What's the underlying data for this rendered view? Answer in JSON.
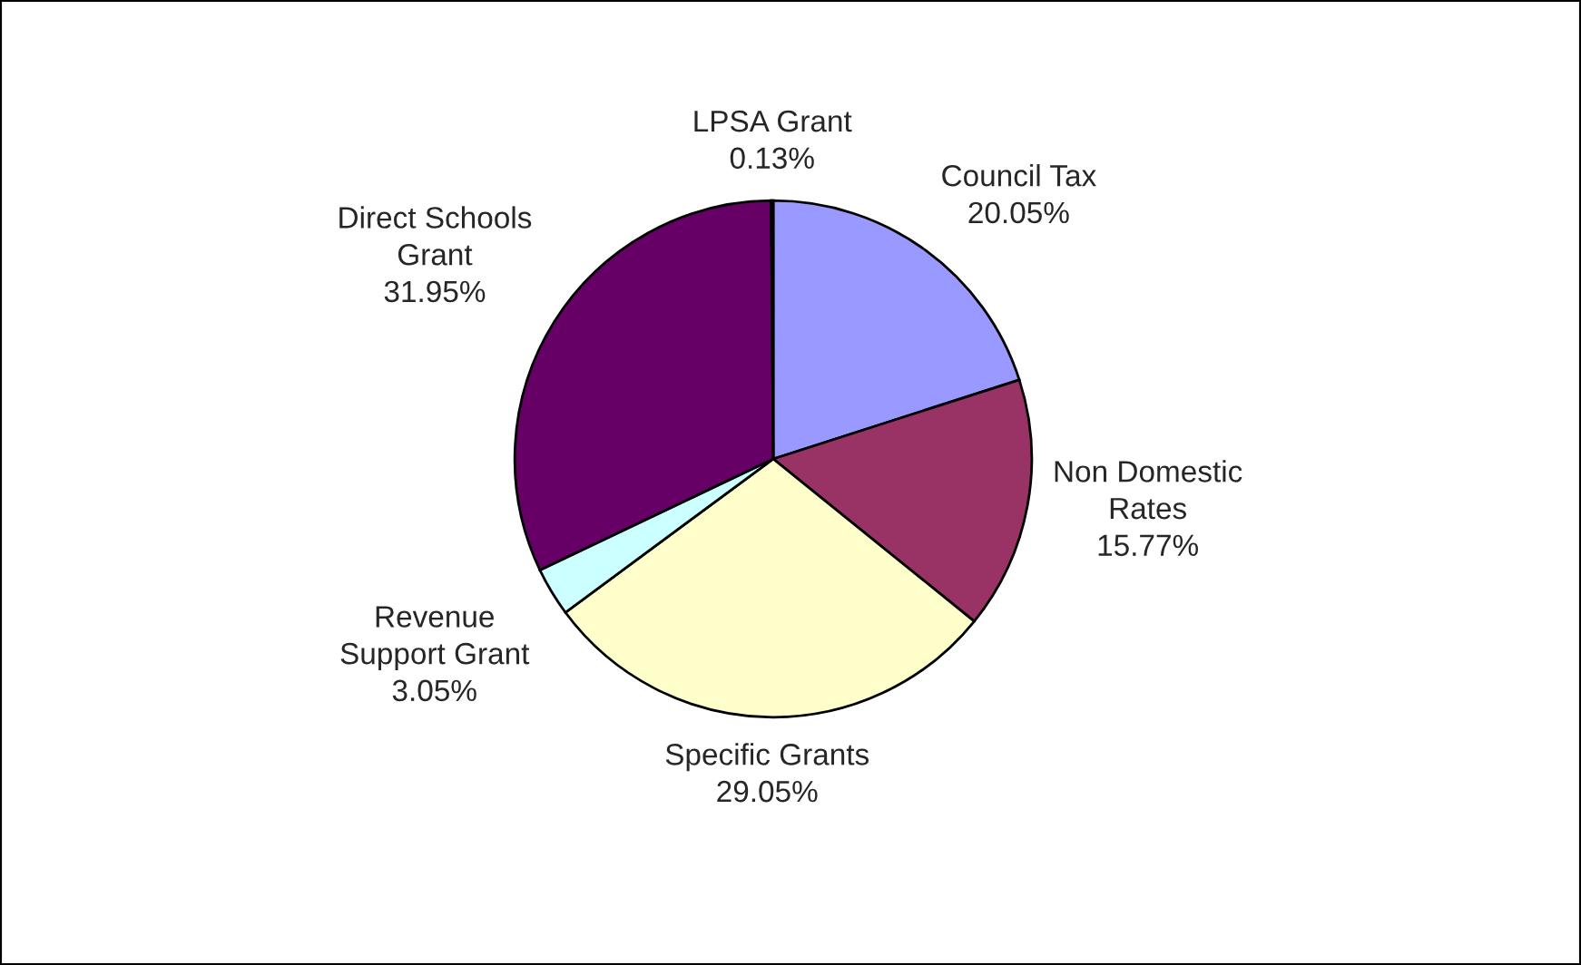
{
  "chart_data": {
    "type": "pie",
    "categories": [
      "Council Tax",
      "Non Domestic\nRates",
      "Specific Grants",
      "Revenue\nSupport Grant",
      "Direct Schools\nGrant",
      "LPSA Grant"
    ],
    "values": [
      20.05,
      15.77,
      29.05,
      3.05,
      31.95,
      0.13
    ],
    "value_labels": [
      "20.05%",
      "15.77%",
      "29.05%",
      "3.05%",
      "31.95%",
      "0.13%"
    ],
    "colors": [
      "#9999ff",
      "#993366",
      "#ffffcc",
      "#ccffff",
      "#660066",
      "#0066cc"
    ]
  }
}
